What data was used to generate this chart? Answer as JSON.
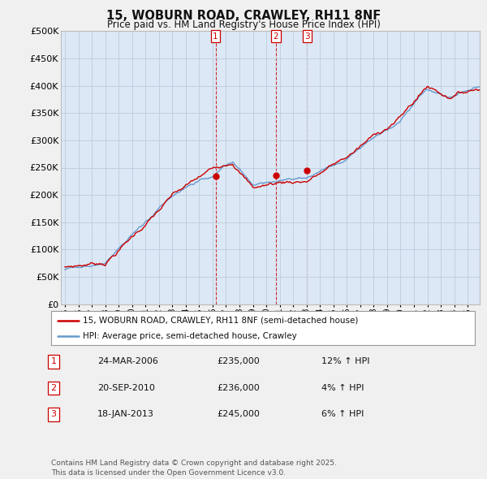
{
  "title": "15, WOBURN ROAD, CRAWLEY, RH11 8NF",
  "subtitle": "Price paid vs. HM Land Registry's House Price Index (HPI)",
  "ylim": [
    0,
    500000
  ],
  "yticks": [
    0,
    50000,
    100000,
    150000,
    200000,
    250000,
    300000,
    350000,
    400000,
    450000,
    500000
  ],
  "ytick_labels": [
    "£0",
    "£50K",
    "£100K",
    "£150K",
    "£200K",
    "£250K",
    "£300K",
    "£350K",
    "£400K",
    "£450K",
    "£500K"
  ],
  "bg_color": "#f0f0f0",
  "plot_bg_color": "#dce8f5",
  "grid_color": "#c0d0e0",
  "line_color_red": "#cc0000",
  "line_color_blue": "#6699cc",
  "sale_marker_color": "#cc0000",
  "vline_color": "#cc0000",
  "legend_label_red": "15, WOBURN ROAD, CRAWLEY, RH11 8NF (semi-detached house)",
  "legend_label_blue": "HPI: Average price, semi-detached house, Crawley",
  "transactions": [
    {
      "num": 1,
      "date": "24-MAR-2006",
      "price": "235,000",
      "hpi_pct": "12%",
      "year": 2006.22
    },
    {
      "num": 2,
      "date": "20-SEP-2010",
      "price": "236,000",
      "hpi_pct": "4%",
      "year": 2010.72
    },
    {
      "num": 3,
      "date": "18-JAN-2013",
      "price": "245,000",
      "hpi_pct": "6%",
      "year": 2013.05
    }
  ],
  "footer": "Contains HM Land Registry data © Crown copyright and database right 2025.\nThis data is licensed under the Open Government Licence v3.0.",
  "xtick_years": [
    1995,
    1996,
    1997,
    1998,
    1999,
    2000,
    2001,
    2002,
    2003,
    2004,
    2005,
    2006,
    2007,
    2008,
    2009,
    2010,
    2011,
    2012,
    2013,
    2014,
    2015,
    2016,
    2017,
    2018,
    2019,
    2020,
    2021,
    2022,
    2023,
    2024,
    2025
  ]
}
